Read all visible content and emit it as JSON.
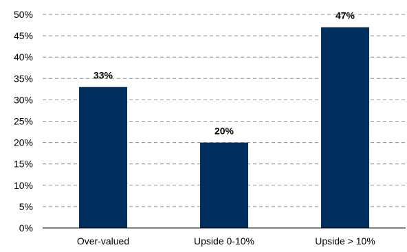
{
  "chart_data": {
    "type": "bar",
    "title": "",
    "xlabel": "",
    "ylabel": "",
    "categories": [
      "Over-valued",
      "Upside 0-10%",
      "Upside > 10%"
    ],
    "values": [
      33,
      20,
      47
    ],
    "data_labels": [
      "33%",
      "20%",
      "47%"
    ],
    "ylim": [
      0,
      50
    ],
    "y_ticks": [
      0,
      5,
      10,
      15,
      20,
      25,
      30,
      35,
      40,
      45,
      50
    ],
    "y_tick_labels": [
      "0%",
      "5%",
      "10%",
      "15%",
      "20%",
      "25%",
      "30%",
      "35%",
      "40%",
      "45%",
      "50%"
    ],
    "grid": true,
    "grid_style": "dashed",
    "legend": "none",
    "bar_color": "#002F5F"
  }
}
